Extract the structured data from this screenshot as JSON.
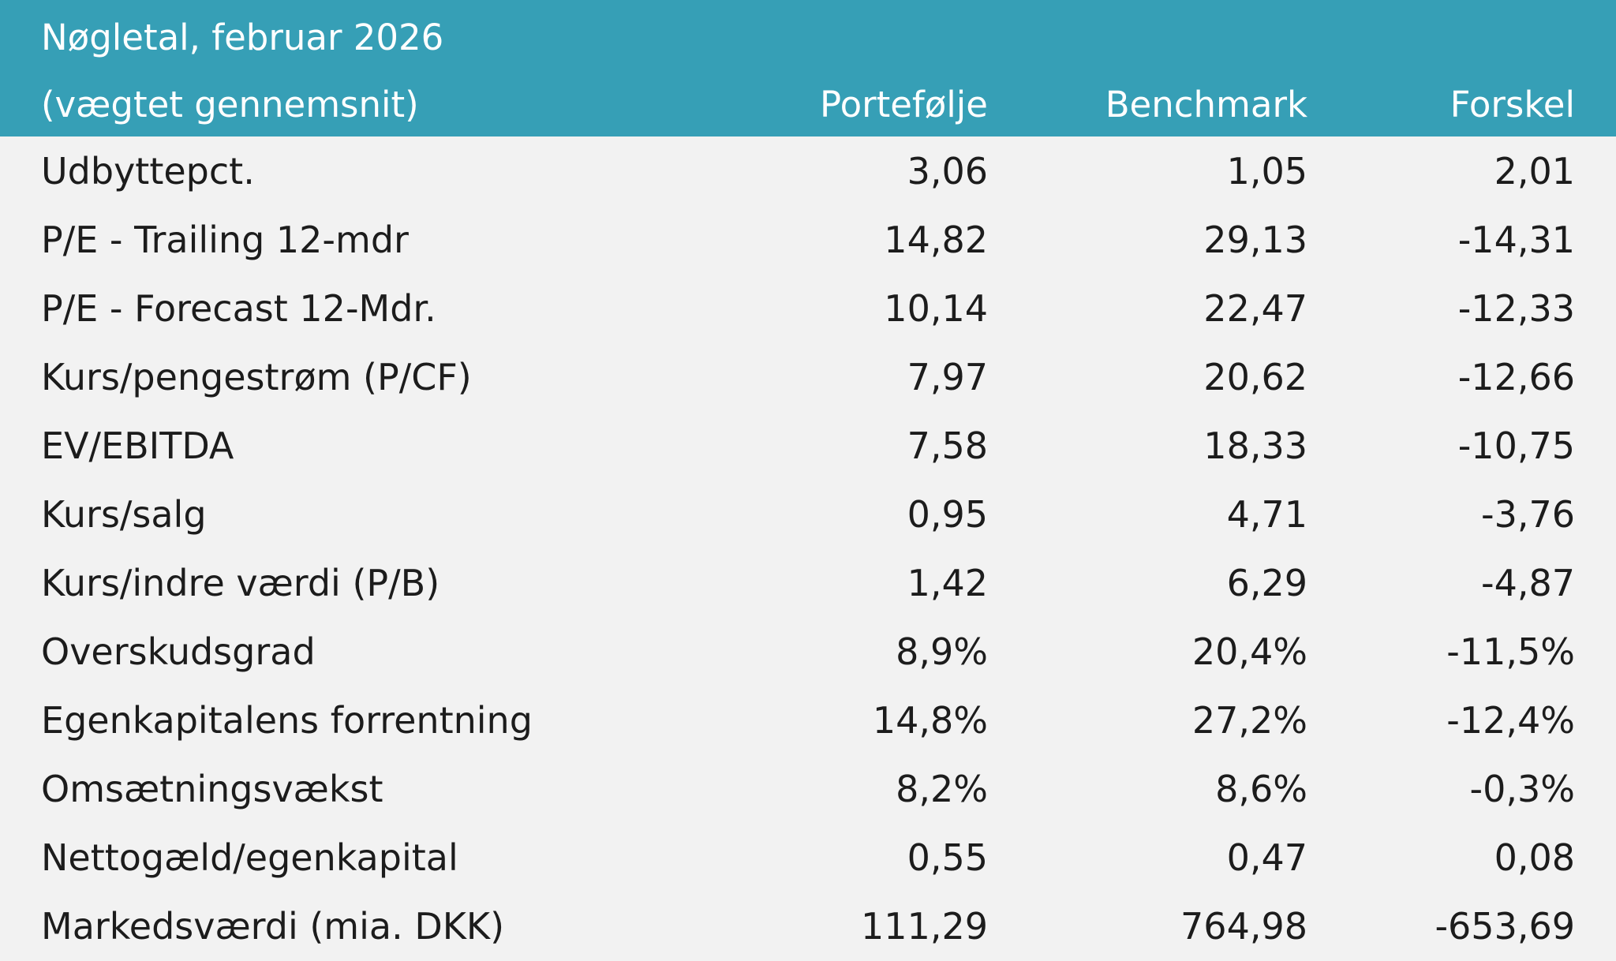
{
  "header": {
    "title": "Nøgletal, februar 2026",
    "subtitle": "(vægtet gennemsnit)",
    "columns": [
      "Portefølje",
      "Benchmark",
      "Forskel"
    ]
  },
  "rows": [
    {
      "label": "Udbyttepct.",
      "portfolio": "3,06",
      "benchmark": "1,05",
      "difference": "2,01"
    },
    {
      "label": "P/E - Trailing 12-mdr",
      "portfolio": "14,82",
      "benchmark": "29,13",
      "difference": "-14,31"
    },
    {
      "label": "P/E - Forecast 12-Mdr.",
      "portfolio": "10,14",
      "benchmark": "22,47",
      "difference": "-12,33"
    },
    {
      "label": "Kurs/pengestrøm (P/CF)",
      "portfolio": "7,97",
      "benchmark": "20,62",
      "difference": "-12,66"
    },
    {
      "label": "EV/EBITDA",
      "portfolio": "7,58",
      "benchmark": "18,33",
      "difference": "-10,75"
    },
    {
      "label": "Kurs/salg",
      "portfolio": "0,95",
      "benchmark": "4,71",
      "difference": "-3,76"
    },
    {
      "label": "Kurs/indre værdi (P/B)",
      "portfolio": "1,42",
      "benchmark": "6,29",
      "difference": "-4,87"
    },
    {
      "label": "Overskudsgrad",
      "portfolio": "8,9%",
      "benchmark": "20,4%",
      "difference": "-11,5%"
    },
    {
      "label": "Egenkapitalens forrentning",
      "portfolio": "14,8%",
      "benchmark": "27,2%",
      "difference": "-12,4%"
    },
    {
      "label": "Omsætningsvækst",
      "portfolio": "8,2%",
      "benchmark": "8,6%",
      "difference": "-0,3%"
    },
    {
      "label": "Nettogæld/egenkapital",
      "portfolio": "0,55",
      "benchmark": "0,47",
      "difference": "0,08"
    },
    {
      "label": "Markedsværdi (mia. DKK)",
      "portfolio": "111,29",
      "benchmark": "764,98",
      "difference": "-653,69"
    }
  ]
}
